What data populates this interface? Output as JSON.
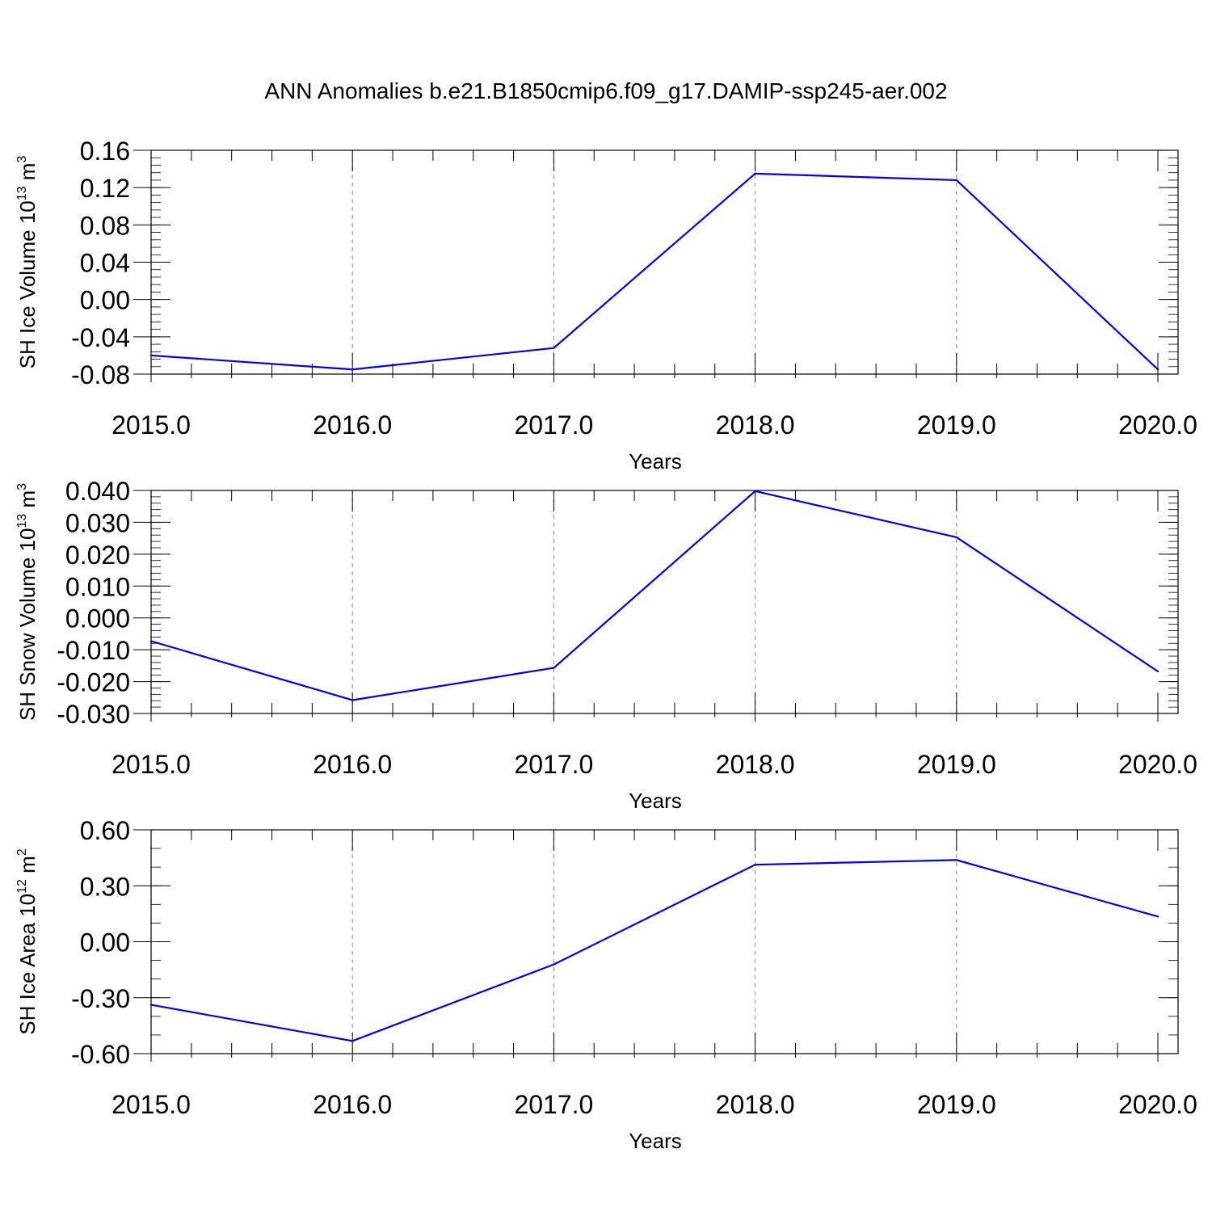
{
  "figure": {
    "title": "ANN Anomalies b.e21.B1850cmip6.f09_g17.DAMIP-ssp245-aer.002",
    "line_color": "#0000ee",
    "grid_color": "#888888"
  },
  "chart_data": [
    {
      "type": "line",
      "xlabel": "Years",
      "ylabel": {
        "main": "SH Ice Volume 10",
        "exp": "13",
        "unit": " m",
        "unit_exp": "3"
      },
      "xlim": [
        2015,
        2020
      ],
      "ylim": [
        -0.08,
        0.16
      ],
      "x_ticks": [
        "2015.0",
        "2016.0",
        "2017.0",
        "2018.0",
        "2019.0",
        "2020.0"
      ],
      "y_ticks": [
        {
          "value": -0.08,
          "label": "-0.08"
        },
        {
          "value": -0.04,
          "label": "-0.04"
        },
        {
          "value": 0.0,
          "label": "0.00"
        },
        {
          "value": 0.04,
          "label": "0.04"
        },
        {
          "value": 0.08,
          "label": "0.08"
        },
        {
          "value": 0.12,
          "label": "0.12"
        },
        {
          "value": 0.16,
          "label": "0.16"
        }
      ],
      "y_minor_step": 0.008,
      "grid": true,
      "x": [
        2015,
        2016,
        2017,
        2018,
        2019,
        2020
      ],
      "y": [
        -0.06,
        -0.075,
        -0.052,
        0.135,
        0.128,
        -0.075
      ]
    },
    {
      "type": "line",
      "xlabel": "Years",
      "ylabel": {
        "main": "SH Snow Volume 10",
        "exp": "13",
        "unit": " m",
        "unit_exp": "3"
      },
      "xlim": [
        2015,
        2020
      ],
      "ylim": [
        -0.03,
        0.04
      ],
      "x_ticks": [
        "2015.0",
        "2016.0",
        "2017.0",
        "2018.0",
        "2019.0",
        "2020.0"
      ],
      "y_ticks": [
        {
          "value": -0.03,
          "label": "-0.030"
        },
        {
          "value": -0.02,
          "label": "-0.020"
        },
        {
          "value": -0.01,
          "label": "-0.010"
        },
        {
          "value": 0.0,
          "label": "0.000"
        },
        {
          "value": 0.01,
          "label": "0.010"
        },
        {
          "value": 0.02,
          "label": "0.020"
        },
        {
          "value": 0.03,
          "label": "0.030"
        },
        {
          "value": 0.04,
          "label": "0.040"
        }
      ],
      "y_minor_step": 0.002,
      "grid": true,
      "x": [
        2015,
        2016,
        2017,
        2018,
        2019,
        2020
      ],
      "y": [
        -0.0073,
        -0.0258,
        -0.0157,
        0.0398,
        0.0253,
        -0.0168
      ]
    },
    {
      "type": "line",
      "xlabel": "Years",
      "ylabel": {
        "main": "SH Ice Area 10",
        "exp": "12",
        "unit": " m",
        "unit_exp": "2"
      },
      "xlim": [
        2015,
        2020
      ],
      "ylim": [
        -0.6,
        0.6
      ],
      "x_ticks": [
        "2015.0",
        "2016.0",
        "2017.0",
        "2018.0",
        "2019.0",
        "2020.0"
      ],
      "y_ticks": [
        {
          "value": -0.6,
          "label": "-0.60"
        },
        {
          "value": -0.3,
          "label": "-0.30"
        },
        {
          "value": 0.0,
          "label": "0.00"
        },
        {
          "value": 0.3,
          "label": "0.30"
        },
        {
          "value": 0.6,
          "label": "0.60"
        }
      ],
      "y_minor_step": 0.1,
      "grid": true,
      "x": [
        2015,
        2016,
        2017,
        2018,
        2019,
        2020
      ],
      "y": [
        -0.338,
        -0.532,
        -0.122,
        0.413,
        0.438,
        0.135
      ]
    }
  ]
}
